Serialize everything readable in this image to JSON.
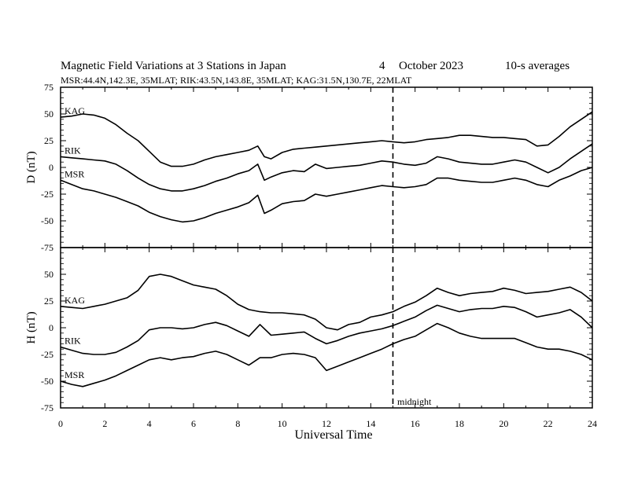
{
  "header": {
    "title": "Magnetic Field Variations at 3 Stations in Japan",
    "day": "4",
    "month_year": "October 2023",
    "averaging": "10-s averages",
    "stations_line": "MSR:44.4N,142.3E, 35MLAT;  RIK:43.5N,143.8E, 35MLAT;  KAG:31.5N,130.7E, 22MLAT"
  },
  "colors": {
    "line": "#000000",
    "background": "#ffffff"
  },
  "chart_data": [
    {
      "type": "line",
      "ylabel": "D (nT)",
      "xlabel": "",
      "xlim": [
        0,
        24
      ],
      "ylim": [
        -75,
        75
      ],
      "yticks": [
        75,
        50,
        25,
        0,
        -25,
        -50,
        -75
      ],
      "xticks": [
        0,
        2,
        4,
        6,
        8,
        10,
        12,
        14,
        16,
        18,
        20,
        22,
        24
      ],
      "grid": false,
      "series": [
        {
          "name": "KAG",
          "x": [
            0,
            0.5,
            1,
            1.5,
            2,
            2.5,
            3,
            3.5,
            4,
            4.5,
            5,
            5.5,
            6,
            6.5,
            7,
            7.5,
            8,
            8.5,
            8.9,
            9.2,
            9.5,
            10,
            10.5,
            11,
            11.5,
            12,
            12.5,
            13,
            13.5,
            14,
            14.5,
            15,
            15.5,
            16,
            16.5,
            17,
            17.5,
            18,
            18.5,
            19,
            19.5,
            20,
            20.5,
            21,
            21.5,
            22,
            22.5,
            23,
            23.5,
            24
          ],
          "y": [
            47,
            48,
            50,
            49,
            46,
            40,
            32,
            25,
            15,
            5,
            1,
            1,
            3,
            7,
            10,
            12,
            14,
            16,
            20,
            10,
            8,
            14,
            17,
            18,
            19,
            20,
            21,
            22,
            23,
            24,
            25,
            24,
            23,
            24,
            26,
            27,
            28,
            30,
            30,
            29,
            28,
            28,
            27,
            26,
            20,
            21,
            29,
            38,
            45,
            52
          ]
        },
        {
          "name": "RIK",
          "x": [
            0,
            0.5,
            1,
            1.5,
            2,
            2.5,
            3,
            3.5,
            4,
            4.5,
            5,
            5.5,
            6,
            6.5,
            7,
            7.5,
            8,
            8.5,
            8.9,
            9.2,
            9.5,
            10,
            10.5,
            11,
            11.5,
            12,
            12.5,
            13,
            13.5,
            14,
            14.5,
            15,
            15.5,
            16,
            16.5,
            17,
            17.5,
            18,
            18.5,
            19,
            19.5,
            20,
            20.5,
            21,
            21.5,
            22,
            22.5,
            23,
            23.5,
            24
          ],
          "y": [
            10,
            9,
            8,
            7,
            6,
            3,
            -3,
            -10,
            -16,
            -20,
            -22,
            -22,
            -20,
            -17,
            -13,
            -10,
            -6,
            -3,
            3,
            -12,
            -9,
            -5,
            -3,
            -4,
            3,
            -1,
            0,
            1,
            2,
            4,
            6,
            5,
            3,
            2,
            4,
            10,
            8,
            5,
            4,
            3,
            3,
            5,
            7,
            5,
            0,
            -5,
            0,
            8,
            15,
            22
          ]
        },
        {
          "name": "MSR",
          "x": [
            0,
            0.5,
            1,
            1.5,
            2,
            2.5,
            3,
            3.5,
            4,
            4.5,
            5,
            5.5,
            6,
            6.5,
            7,
            7.5,
            8,
            8.5,
            8.9,
            9.2,
            9.5,
            10,
            10.5,
            11,
            11.5,
            12,
            12.5,
            13,
            13.5,
            14,
            14.5,
            15,
            15.5,
            16,
            16.5,
            17,
            17.5,
            18,
            18.5,
            19,
            19.5,
            20,
            20.5,
            21,
            21.5,
            22,
            22.5,
            23,
            23.5,
            24
          ],
          "y": [
            -12,
            -16,
            -20,
            -22,
            -25,
            -28,
            -32,
            -36,
            -42,
            -46,
            -49,
            -51,
            -50,
            -47,
            -43,
            -40,
            -37,
            -33,
            -26,
            -43,
            -40,
            -34,
            -32,
            -31,
            -25,
            -27,
            -25,
            -23,
            -21,
            -19,
            -17,
            -18,
            -19,
            -18,
            -16,
            -10,
            -10,
            -12,
            -13,
            -14,
            -14,
            -12,
            -10,
            -12,
            -16,
            -18,
            -12,
            -8,
            -3,
            0
          ]
        }
      ],
      "annotations": [
        {
          "text": "midnight",
          "x": 15,
          "style": "dashed-vertical-line"
        }
      ]
    },
    {
      "type": "line",
      "ylabel": "H (nT)",
      "xlabel": "Universal Time",
      "xlim": [
        0,
        24
      ],
      "ylim": [
        -75,
        75
      ],
      "yticks": [
        50,
        25,
        0,
        -25,
        -50,
        -75
      ],
      "xticks": [
        0,
        2,
        4,
        6,
        8,
        10,
        12,
        14,
        16,
        18,
        20,
        22,
        24
      ],
      "grid": false,
      "series": [
        {
          "name": "KAG",
          "x": [
            0,
            0.5,
            1,
            1.5,
            2,
            2.5,
            3,
            3.5,
            4,
            4.5,
            5,
            5.5,
            6,
            6.5,
            7,
            7.5,
            8,
            8.5,
            9,
            9.5,
            10,
            10.5,
            11,
            11.5,
            12,
            12.5,
            13,
            13.5,
            14,
            14.5,
            15,
            15.5,
            16,
            16.5,
            17,
            17.5,
            18,
            18.5,
            19,
            19.5,
            20,
            20.5,
            21,
            21.5,
            22,
            22.5,
            23,
            23.5,
            24
          ],
          "y": [
            20,
            19,
            18,
            20,
            22,
            25,
            28,
            35,
            48,
            50,
            48,
            44,
            40,
            38,
            36,
            30,
            22,
            17,
            15,
            14,
            14,
            13,
            12,
            8,
            0,
            -2,
            3,
            5,
            10,
            12,
            15,
            20,
            24,
            30,
            37,
            33,
            30,
            32,
            33,
            34,
            37,
            35,
            32,
            33,
            34,
            36,
            38,
            33,
            25
          ]
        },
        {
          "name": "RIK",
          "x": [
            0,
            0.5,
            1,
            1.5,
            2,
            2.5,
            3,
            3.5,
            4,
            4.5,
            5,
            5.5,
            6,
            6.5,
            7,
            7.5,
            8,
            8.5,
            9,
            9.5,
            10,
            10.5,
            11,
            11.5,
            12,
            12.5,
            13,
            13.5,
            14,
            14.5,
            15,
            15.5,
            16,
            16.5,
            17,
            17.5,
            18,
            18.5,
            19,
            19.5,
            20,
            20.5,
            21,
            21.5,
            22,
            22.5,
            23,
            23.5,
            24
          ],
          "y": [
            -18,
            -21,
            -24,
            -25,
            -25,
            -23,
            -18,
            -12,
            -2,
            0,
            0,
            -1,
            0,
            3,
            5,
            2,
            -3,
            -8,
            3,
            -7,
            -6,
            -5,
            -4,
            -10,
            -15,
            -12,
            -8,
            -5,
            -3,
            -1,
            2,
            6,
            10,
            16,
            21,
            18,
            15,
            17,
            18,
            18,
            20,
            19,
            15,
            10,
            12,
            14,
            17,
            10,
            0
          ]
        },
        {
          "name": "MSR",
          "x": [
            0,
            0.5,
            1,
            1.5,
            2,
            2.5,
            3,
            3.5,
            4,
            4.5,
            5,
            5.5,
            6,
            6.5,
            7,
            7.5,
            8,
            8.5,
            9,
            9.5,
            10,
            10.5,
            11,
            11.5,
            12,
            12.5,
            13,
            13.5,
            14,
            14.5,
            15,
            15.5,
            16,
            16.5,
            17,
            17.5,
            18,
            18.5,
            19,
            19.5,
            20,
            20.5,
            21,
            21.5,
            22,
            22.5,
            23,
            23.5,
            24
          ],
          "y": [
            -50,
            -53,
            -55,
            -52,
            -49,
            -45,
            -40,
            -35,
            -30,
            -28,
            -30,
            -28,
            -27,
            -24,
            -22,
            -25,
            -30,
            -35,
            -28,
            -28,
            -25,
            -24,
            -25,
            -28,
            -40,
            -36,
            -32,
            -28,
            -24,
            -20,
            -15,
            -11,
            -8,
            -2,
            4,
            0,
            -5,
            -8,
            -10,
            -10,
            -10,
            -10,
            -14,
            -18,
            -20,
            -20,
            -22,
            -25,
            -30
          ]
        }
      ],
      "annotations": [
        {
          "text": "midnight",
          "x": 15,
          "style": "dashed-vertical-line"
        }
      ]
    }
  ]
}
